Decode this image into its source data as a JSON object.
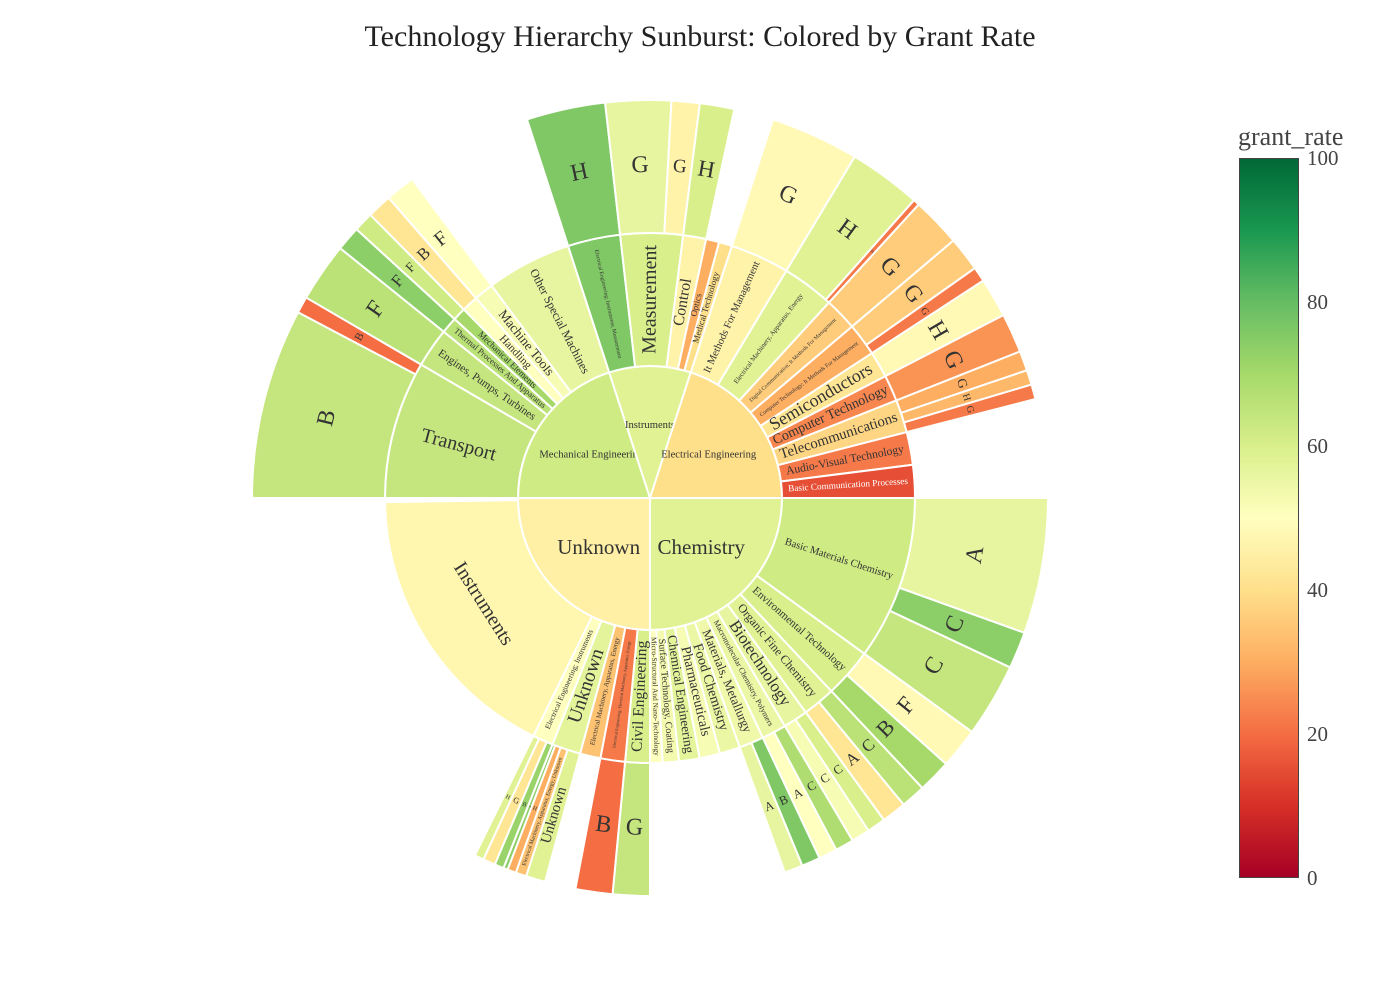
{
  "chart_data": {
    "type": "sunburst",
    "title": "Technology Hierarchy Sunburst: Colored by Grant Rate",
    "colorbar": {
      "title": "grant_rate",
      "range": [
        0,
        100
      ],
      "ticks": [
        "0",
        "20",
        "40",
        "60",
        "80",
        "100"
      ],
      "colorscale": "RdYlGn",
      "stops": [
        "#a50026",
        "#d73027",
        "#f46d43",
        "#fdae61",
        "#fee08b",
        "#ffffbf",
        "#d9ef8b",
        "#a6d96a",
        "#66bd63",
        "#1a9850",
        "#006837"
      ]
    },
    "nodes": [
      {
        "name": "Chemistry",
        "rate": 58,
        "share": 0.25,
        "children": [
          {
            "name": "Basic Materials Chemistry",
            "rate": 62,
            "share": 0.4,
            "children": [
              {
                "name": "A",
                "rate": 56,
                "share": 0.55
              },
              {
                "name": "C",
                "rate": 74,
                "share": 0.15
              },
              {
                "name": "C",
                "rate": 64,
                "share": 0.3
              }
            ]
          },
          {
            "name": "Environmental Technology",
            "rate": 60,
            "share": 0.12,
            "children": [
              {
                "name": "F",
                "rate": 48,
                "share": 0.55
              },
              {
                "name": "B",
                "rate": 70,
                "share": 0.45
              }
            ]
          },
          {
            "name": "Organic Fine Chemistry",
            "rate": 58,
            "share": 0.08,
            "children": [
              {
                "name": "C",
                "rate": 66,
                "share": 0.5
              },
              {
                "name": "A",
                "rate": 42,
                "share": 0.5
              }
            ]
          },
          {
            "name": "Biotechnology",
            "rate": 56,
            "share": 0.06,
            "children": [
              {
                "name": "C",
                "rate": 60,
                "share": 0.5
              },
              {
                "name": "C",
                "rate": 52,
                "share": 0.5
              }
            ]
          },
          {
            "name": "Macromolecular Chemistry, Polymers",
            "rate": 55,
            "share": 0.06,
            "children": [
              {
                "name": "C",
                "rate": 68,
                "share": 0.5
              },
              {
                "name": "A",
                "rate": 50,
                "share": 0.5
              }
            ]
          },
          {
            "name": "Materials, Metallurgy",
            "rate": 54,
            "share": 0.06,
            "children": [
              {
                "name": "B",
                "rate": 76,
                "share": 0.5
              },
              {
                "name": "A",
                "rate": 56,
                "share": 0.5
              }
            ]
          },
          {
            "name": "Food Chemistry",
            "rate": 55,
            "share": 0.05,
            "children": []
          },
          {
            "name": "Pharmaceuticals",
            "rate": 52,
            "share": 0.05,
            "children": []
          },
          {
            "name": "Chemical Engineering",
            "rate": 57,
            "share": 0.05,
            "children": []
          },
          {
            "name": "Surface Technology, Coating",
            "rate": 53,
            "share": 0.04,
            "children": []
          },
          {
            "name": "Micro-Structural And Nano-Technology",
            "rate": 50,
            "share": 0.03,
            "children": []
          }
        ]
      },
      {
        "name": "Unknown",
        "rate": 45,
        "share": 0.25,
        "children": [
          {
            "name": "Civil Engineering",
            "rate": 60,
            "share": 0.06,
            "children": [
              {
                "name": "G",
                "rate": 64,
                "share": 1.0
              }
            ]
          },
          {
            "name": "Electrical Engineering; Electrical Machinery, Apparatus, Energy",
            "rate": 22,
            "share": 0.06,
            "children": [
              {
                "name": "B",
                "rate": 20,
                "share": 1.0
              }
            ]
          },
          {
            "name": "Electrical Machinery, Apparatus, Energy",
            "rate": 34,
            "share": 0.05,
            "children": []
          },
          {
            "name": "Unknown",
            "rate": 57,
            "share": 0.07,
            "children": [
              {
                "name": "Unknown",
                "rate": 58,
                "share": 0.45
              },
              {
                "name": "Electrical Machinery, Apparatus, Energy; Unknown",
                "rate": 34,
                "share": 0.25
              },
              {
                "name": "H",
                "rate": 30,
                "share": 0.2
              },
              {
                "name": "H",
                "rate": 74,
                "share": 0.1
              }
            ]
          },
          {
            "name": "Electrical Engineering; Instruments",
            "rate": 50,
            "share": 0.05,
            "children": [
              {
                "name": "B",
                "rate": 72,
                "share": 0.3
              },
              {
                "name": "G",
                "rate": 42,
                "share": 0.4
              },
              {
                "name": "H",
                "rate": 58,
                "share": 0.3
              }
            ]
          },
          {
            "name": "Instruments",
            "rate": 47,
            "share": 0.7,
            "children": []
          }
        ]
      },
      {
        "name": "Mechanical Engineering",
        "rate": 62,
        "share": 0.2,
        "children": [
          {
            "name": "Transport",
            "rate": 64,
            "share": 0.42,
            "children": [
              {
                "name": "B",
                "rate": 64,
                "share": 0.92
              },
              {
                "name": "B",
                "rate": 20,
                "share": 0.08
              }
            ]
          },
          {
            "name": "Engines, Pumps, Turbines",
            "rate": 64,
            "share": 0.12,
            "children": [
              {
                "name": "F",
                "rate": 66,
                "share": 1.0
              }
            ]
          },
          {
            "name": "Thermal Processes And Apparatus",
            "rate": 66,
            "share": 0.05,
            "children": [
              {
                "name": "F",
                "rate": 74,
                "share": 1.0
              }
            ]
          },
          {
            "name": "Mechanical Elements",
            "rate": 70,
            "share": 0.04,
            "children": [
              {
                "name": "F",
                "rate": 62,
                "share": 1.0
              }
            ]
          },
          {
            "name": "Handling",
            "rate": 50,
            "share": 0.05,
            "children": [
              {
                "name": "B",
                "rate": 42,
                "share": 1.0
              }
            ]
          },
          {
            "name": "Machine Tools",
            "rate": 52,
            "share": 0.06,
            "children": [
              {
                "name": "F",
                "rate": 50,
                "share": 1.0
              }
            ]
          },
          {
            "name": "Other Special Machines",
            "rate": 56,
            "share": 0.26,
            "children": []
          }
        ]
      },
      {
        "name": "Instruments",
        "rate": 58,
        "share": 0.1,
        "children": [
          {
            "name": "Electrical Engineering; Instruments; Measurement",
            "rate": 76,
            "share": 0.32,
            "children": [
              {
                "name": "H",
                "rate": 76,
                "share": 1.0
              }
            ]
          },
          {
            "name": "Measurement",
            "rate": 60,
            "share": 0.38,
            "children": [
              {
                "name": "G",
                "rate": 56,
                "share": 0.7
              },
              {
                "name": "G",
                "rate": 46,
                "share": 0.3
              }
            ]
          },
          {
            "name": "Control",
            "rate": 46,
            "share": 0.14,
            "children": [
              {
                "name": "H",
                "rate": 60,
                "share": 1.0
              }
            ]
          },
          {
            "name": "Optics",
            "rate": 30,
            "share": 0.08,
            "children": []
          },
          {
            "name": "Medical Technology",
            "rate": 40,
            "share": 0.08,
            "children": []
          }
        ]
      },
      {
        "name": "Electrical Engineering",
        "rate": 40,
        "share": 0.2,
        "children": [
          {
            "name": "It Methods For Management",
            "rate": 46,
            "share": 0.18,
            "children": [
              {
                "name": "G",
                "rate": 48,
                "share": 1.0
              }
            ]
          },
          {
            "name": "Electrical Machinery, Apparatus, Energy",
            "rate": 58,
            "share": 0.16,
            "children": [
              {
                "name": "H",
                "rate": 58,
                "share": 0.92
              },
              {
                "name": "H",
                "rate": 22,
                "share": 0.08
              }
            ]
          },
          {
            "name": "Digital Communication; It Methods For Management",
            "rate": 36,
            "share": 0.1,
            "children": [
              {
                "name": "G",
                "rate": 36,
                "share": 1.0
              }
            ]
          },
          {
            "name": "Computer Technology; It Methods For Management",
            "rate": 30,
            "share": 0.1,
            "children": [
              {
                "name": "G",
                "rate": 36,
                "share": 0.7
              },
              {
                "name": "G",
                "rate": 22,
                "share": 0.3
              }
            ]
          },
          {
            "name": "Semiconductors",
            "rate": 42,
            "share": 0.08,
            "children": [
              {
                "name": "H",
                "rate": 48,
                "share": 1.0
              }
            ]
          },
          {
            "name": "Computer Technology",
            "rate": 24,
            "share": 0.08,
            "children": [
              {
                "name": "G",
                "rate": 26,
                "share": 1.0
              }
            ]
          },
          {
            "name": "Telecommunications",
            "rate": 38,
            "share": 0.1,
            "children": [
              {
                "name": "G",
                "rate": 30,
                "share": 0.4
              },
              {
                "name": "H",
                "rate": 32,
                "share": 0.3
              },
              {
                "name": "G",
                "rate": 22,
                "share": 0.3
              }
            ]
          },
          {
            "name": "Audio-Visual Technology",
            "rate": 22,
            "share": 0.1,
            "children": []
          },
          {
            "name": "Basic Communication Processes",
            "rate": 15,
            "share": 0.1,
            "children": []
          }
        ]
      }
    ]
  }
}
